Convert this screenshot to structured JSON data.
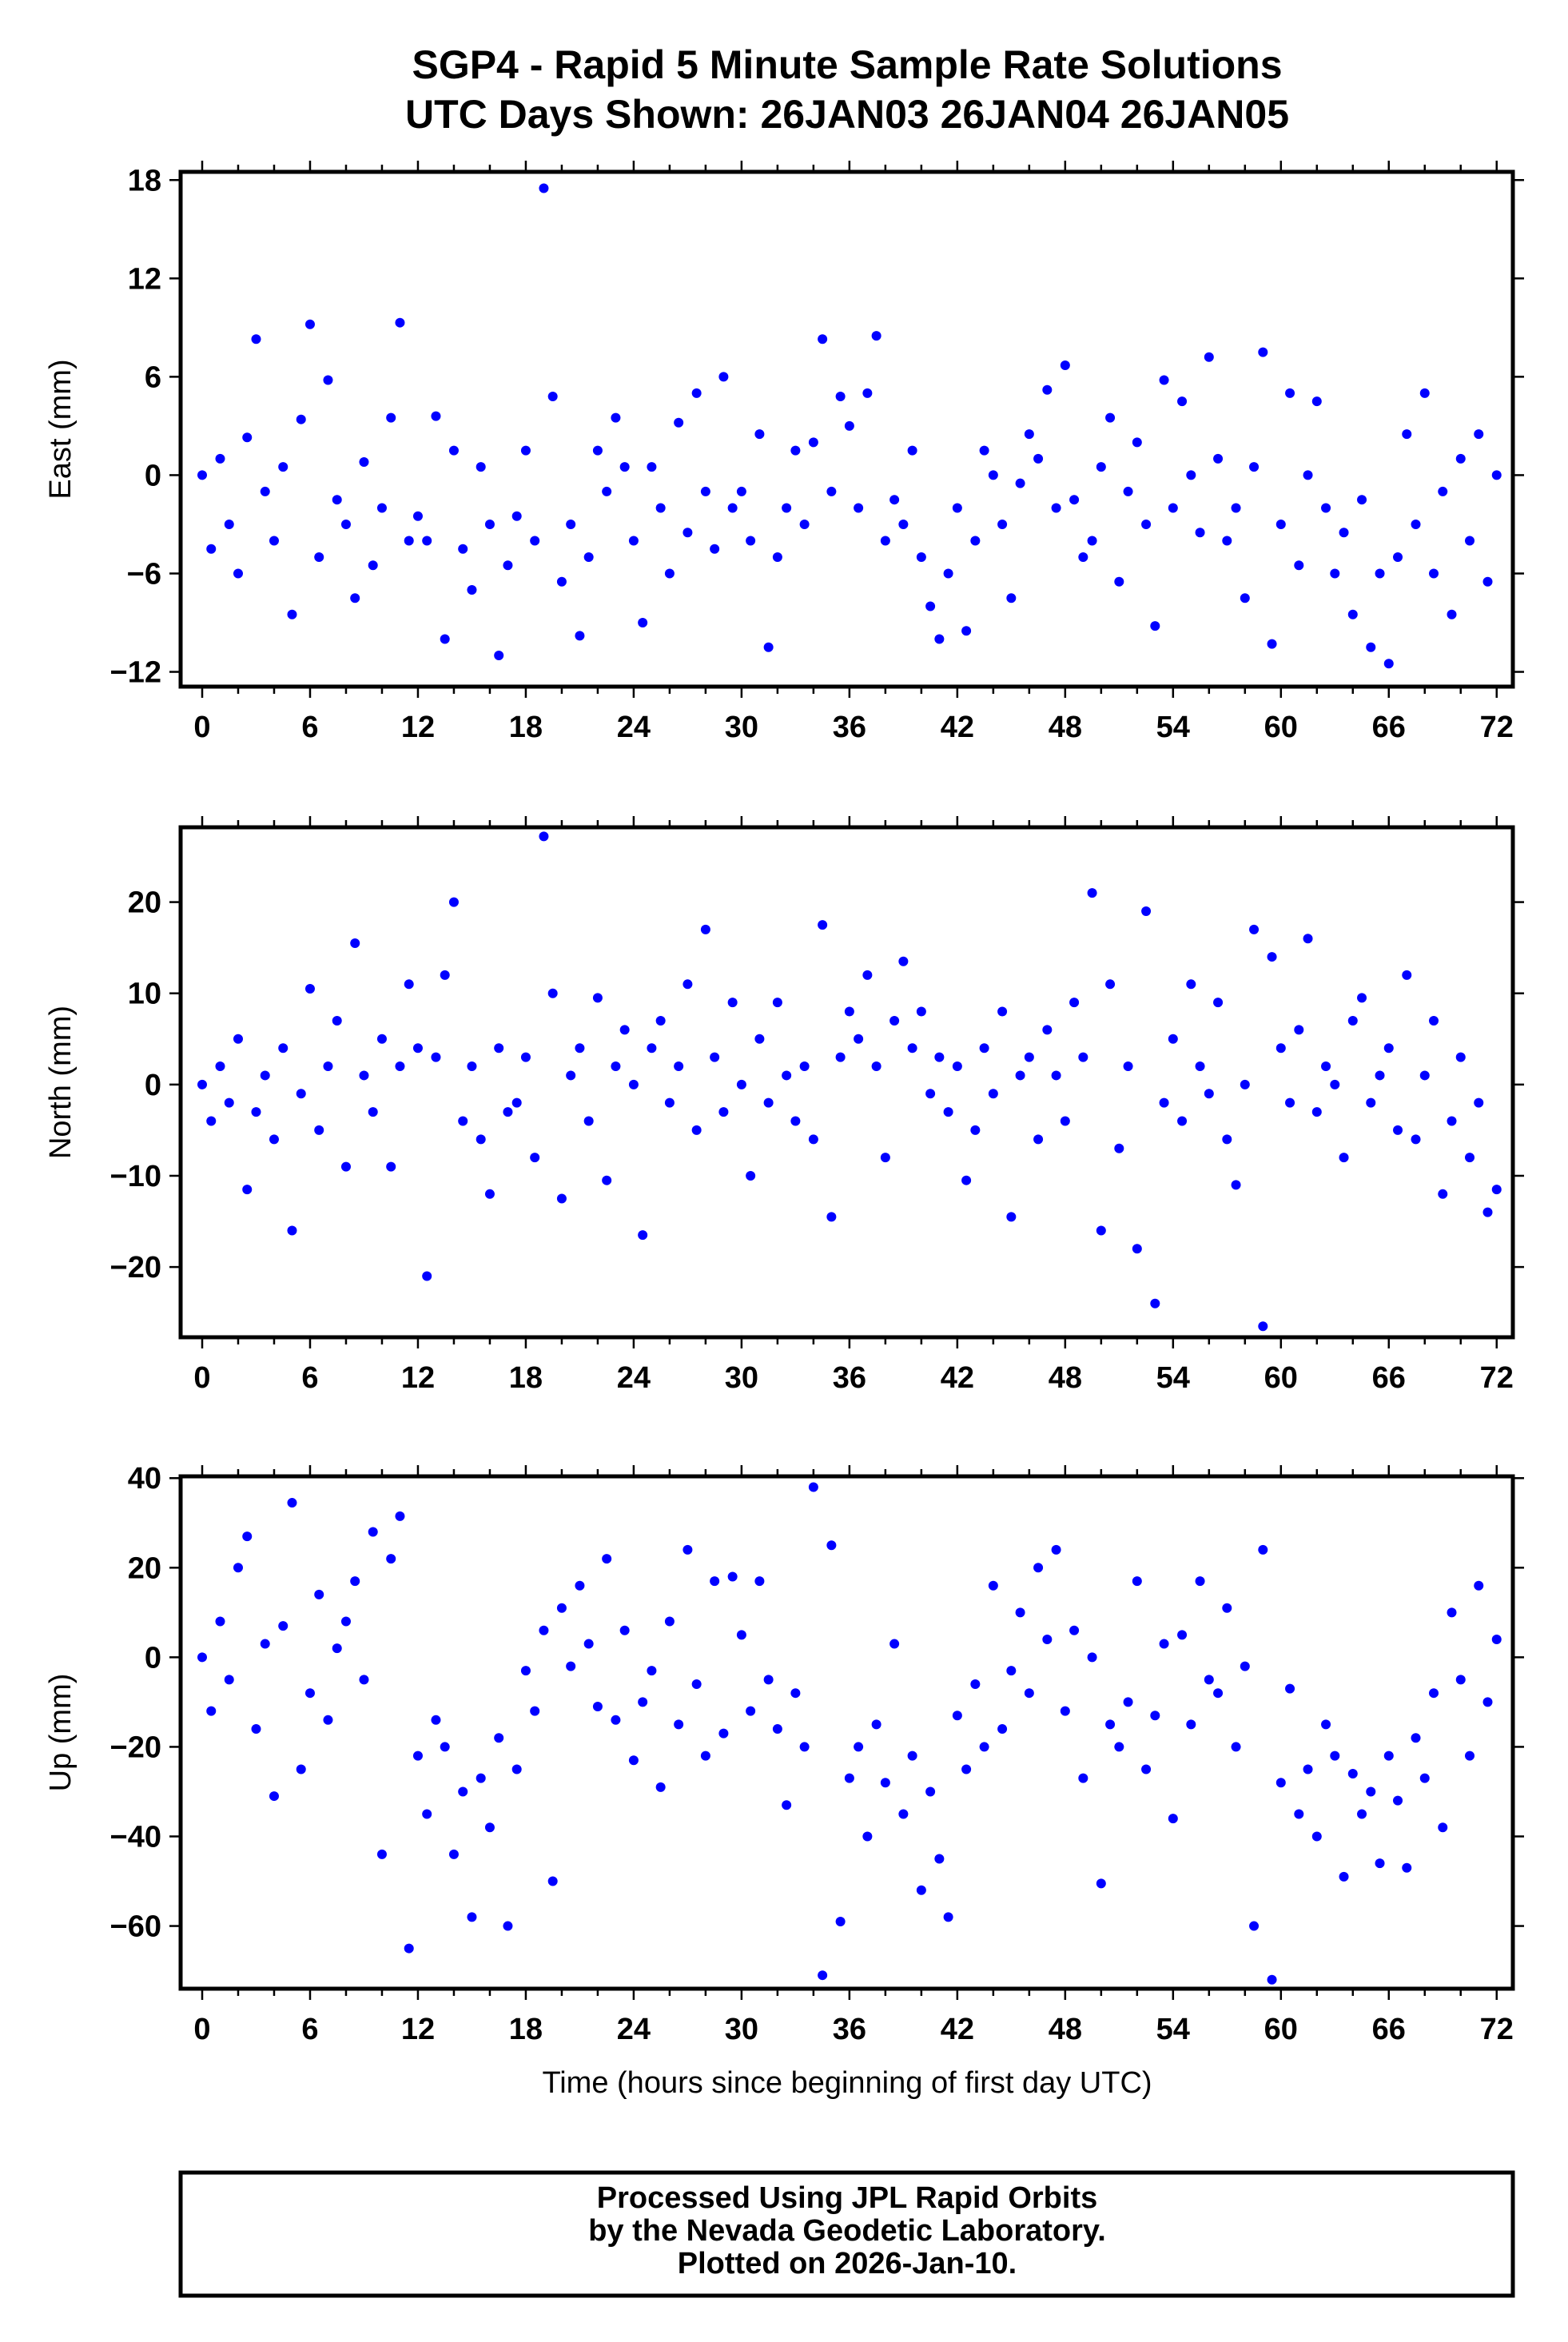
{
  "chart_data": {
    "type": "scatter",
    "title": "SGP4 - Rapid 5 Minute Sample Rate Solutions",
    "subtitle": "UTC Days Shown:  26JAN03 26JAN04 26JAN05",
    "xlabel": "Time (hours since beginning of first day UTC)",
    "xlim": [
      -1.2,
      72.9
    ],
    "xticks": [
      0,
      6,
      12,
      18,
      24,
      30,
      36,
      42,
      48,
      54,
      60,
      66,
      72
    ],
    "x_start": 0,
    "x_step": 0.5,
    "marker_color": "#0000ff",
    "footer": [
      "Processed Using JPL Rapid Orbits",
      "by the Nevada Geodetic Laboratory.",
      "Plotted on 2026-Jan-10."
    ],
    "panels": [
      {
        "name": "east",
        "ylabel": "East (mm)",
        "ylim": [
          -12.9,
          18.5
        ],
        "yticks": [
          -12,
          -6,
          0,
          6,
          12,
          18
        ],
        "ytick_labels": [
          "−12",
          "−6",
          "0",
          "6",
          "12",
          "18"
        ],
        "values": [
          0,
          -4.5,
          1,
          -3,
          -6,
          2.3,
          8.3,
          -1,
          -4,
          0.5,
          -8.5,
          3.4,
          9.2,
          -5,
          5.8,
          -1.5,
          -3,
          -7.5,
          0.8,
          -5.5,
          -2,
          3.5,
          9.3,
          -4,
          -2.5,
          -4,
          3.6,
          -10,
          1.5,
          -4.5,
          -7,
          0.5,
          -3,
          -11,
          -5.5,
          -2.5,
          1.5,
          -4,
          17.5,
          4.8,
          -6.5,
          -3,
          -9.8,
          -5,
          1.5,
          -1,
          3.5,
          0.5,
          -4,
          -9,
          0.5,
          -2,
          -6,
          3.2,
          -3.5,
          5,
          -1,
          -4.5,
          6,
          -2,
          -1,
          -4,
          2.5,
          -10.5,
          -5,
          -2,
          1.5,
          -3,
          2,
          8.3,
          -1,
          4.8,
          3,
          -2,
          5,
          8.5,
          -4,
          -1.5,
          -3,
          1.5,
          -5,
          -8,
          -10,
          -6,
          -2,
          -9.5,
          -4,
          1.5,
          0,
          -3,
          -7.5,
          -0.5,
          2.5,
          1,
          5.2,
          -2,
          6.7,
          -1.5,
          -5,
          -4,
          0.5,
          3.5,
          -6.5,
          -1,
          2,
          -3,
          -9.2,
          5.8,
          -2,
          4.5,
          0,
          -3.5,
          7.2,
          1,
          -4,
          -2,
          -7.5,
          0.5,
          7.5,
          -10.3,
          -3,
          5,
          -5.5,
          0,
          4.5,
          -2,
          -6,
          -3.5,
          -8.5,
          -1.5,
          -10.5,
          -6,
          -11.5,
          -5,
          2.5,
          -3,
          5,
          -6,
          -1,
          -8.5,
          1,
          -4,
          2.5,
          -6.5,
          0
        ]
      },
      {
        "name": "north",
        "ylabel": "North (mm)",
        "ylim": [
          -27.7,
          28.2
        ],
        "yticks": [
          -20,
          -10,
          0,
          10,
          20
        ],
        "ytick_labels": [
          "−20",
          "−10",
          "0",
          "10",
          "20"
        ],
        "values": [
          0,
          -4,
          2,
          -2,
          5,
          -11.5,
          -3,
          1,
          -6,
          4,
          -16,
          -1,
          10.5,
          -5,
          2,
          7,
          -9,
          15.5,
          1,
          -3,
          5,
          -9,
          2,
          11,
          4,
          -21,
          3,
          12,
          20,
          -4,
          2,
          -6,
          -12,
          4,
          -3,
          -2,
          3,
          -8,
          27.2,
          10,
          -12.5,
          1,
          4,
          -4,
          9.5,
          -10.5,
          2,
          6,
          0,
          -16.5,
          4,
          7,
          -2,
          2,
          11,
          -5,
          17,
          3,
          -3,
          9,
          0,
          -10,
          5,
          -2,
          9,
          1,
          -4,
          2,
          -6,
          17.5,
          -14.5,
          3,
          8,
          5,
          12,
          2,
          -8,
          7,
          13.5,
          4,
          8,
          -1,
          3,
          -3,
          2,
          -10.5,
          -5,
          4,
          -1,
          8,
          -14.5,
          1,
          3,
          -6,
          6,
          1,
          -4,
          9,
          3,
          21,
          -16,
          11,
          -7,
          2,
          -18,
          19,
          -24,
          -2,
          5,
          -4,
          11,
          2,
          -1,
          9,
          -6,
          -11,
          0,
          17,
          -26.5,
          14,
          4,
          -2,
          6,
          16,
          -3,
          2,
          0,
          -8,
          7,
          9.5,
          -2,
          1,
          4,
          -5,
          12,
          -6,
          1,
          7,
          -12,
          -4,
          3,
          -8,
          -2,
          -14,
          -11.5
        ]
      },
      {
        "name": "up",
        "ylabel": "Up (mm)",
        "ylim": [
          -74,
          40.4
        ],
        "yticks": [
          -60,
          -40,
          -20,
          0,
          20,
          40
        ],
        "ytick_labels": [
          "−60",
          "−40",
          "−20",
          "0",
          "20",
          "40"
        ],
        "values": [
          0,
          -12,
          8,
          -5,
          20,
          27,
          -16,
          3,
          -31,
          7,
          34.5,
          -25,
          -8,
          14,
          -14,
          2,
          8,
          17,
          -5,
          28,
          -44,
          22,
          31.5,
          -65,
          -22,
          -35,
          -14,
          -20,
          -44,
          -30,
          -58,
          -27,
          -38,
          -18,
          -60,
          -25,
          -3,
          -12,
          6,
          -50,
          11,
          -2,
          16,
          3,
          -11,
          22,
          -14,
          6,
          -23,
          -10,
          -3,
          -29,
          8,
          -15,
          24,
          -6,
          -22,
          17,
          -17,
          18,
          5,
          -12,
          17,
          -5,
          -16,
          -33,
          -8,
          -20,
          38,
          -71,
          25,
          -59,
          -27,
          -20,
          -40,
          -15,
          -28,
          3,
          -35,
          -22,
          -52,
          -30,
          -45,
          -58,
          -13,
          -25,
          -6,
          -20,
          16,
          -16,
          -3,
          10,
          -8,
          20,
          4,
          24,
          -12,
          6,
          -27,
          0,
          -50.5,
          -15,
          -20,
          -10,
          17,
          -25,
          -13,
          3,
          -36,
          5,
          -15,
          17,
          -5,
          -8,
          11,
          -20,
          -2,
          -60,
          24,
          -72,
          -28,
          -7,
          -35,
          -25,
          -40,
          -15,
          -22,
          -49,
          -26,
          -35,
          -30,
          -46,
          -22,
          -32,
          -47,
          -18,
          -27,
          -8,
          -38,
          10,
          -5,
          -22,
          16,
          -10,
          4
        ]
      }
    ]
  }
}
